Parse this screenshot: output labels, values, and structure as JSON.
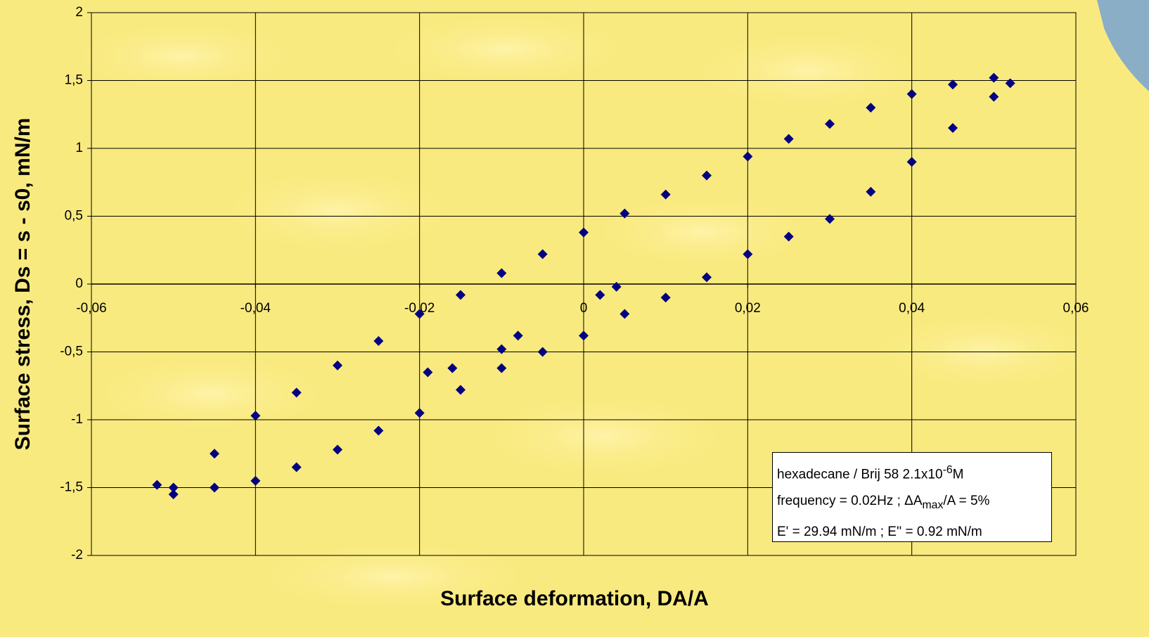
{
  "chart_data": {
    "type": "scatter",
    "x_label": "Surface deformation, DA/A",
    "y_label": "Surface stress, Ds = s - s0, mN/m",
    "color": "#000080",
    "grid": true,
    "xlim": [
      -0.06,
      0.06
    ],
    "ylim": [
      -2,
      2
    ],
    "xticks": [
      {
        "value": -0.06,
        "label": "-0,06"
      },
      {
        "value": -0.04,
        "label": "-0,04"
      },
      {
        "value": -0.02,
        "label": "-0,02"
      },
      0,
      {
        "value": 0.02,
        "label": "0,02"
      },
      {
        "value": 0.04,
        "label": "0,04"
      },
      {
        "value": 0.06,
        "label": "0,06"
      }
    ],
    "yticks": [
      -2,
      {
        "value": -1.5,
        "label": "-1,5"
      },
      -1,
      {
        "value": -0.5,
        "label": "-0,5"
      },
      0,
      {
        "value": 0.5,
        "label": "0,5"
      },
      1,
      {
        "value": 1.5,
        "label": "1,5"
      },
      2
    ],
    "x": [
      -0.05,
      -0.045,
      -0.04,
      -0.035,
      -0.03,
      -0.025,
      -0.02,
      -0.015,
      -0.01,
      -0.005,
      0,
      0.005,
      0.01,
      0.015,
      0.02,
      0.025,
      0.03,
      0.035,
      0.04,
      0.045,
      0.05,
      0.052,
      0.05,
      0.045,
      0.04,
      0.035,
      0.03,
      0.025,
      0.02,
      0.015,
      0.01,
      0.005,
      0,
      -0.005,
      -0.01,
      -0.015,
      -0.02,
      -0.025,
      -0.03,
      -0.035,
      -0.04,
      -0.045,
      -0.05,
      -0.052,
      0.004,
      0.002,
      -0.008,
      -0.01,
      -0.016,
      -0.019
    ],
    "values": [
      -1.5,
      -1.25,
      -0.97,
      -0.8,
      -0.6,
      -0.42,
      -0.22,
      -0.08,
      0.08,
      0.22,
      0.38,
      0.52,
      0.66,
      0.8,
      0.94,
      1.07,
      1.18,
      1.3,
      1.4,
      1.47,
      1.52,
      1.48,
      1.38,
      1.15,
      0.9,
      0.68,
      0.48,
      0.35,
      0.22,
      0.05,
      -0.1,
      -0.22,
      -0.38,
      -0.5,
      -0.62,
      -0.78,
      -0.95,
      -1.08,
      -1.22,
      -1.35,
      -1.45,
      -1.5,
      -1.55,
      -1.48,
      -0.02,
      -0.08,
      -0.38,
      -0.48,
      -0.62,
      -0.65
    ],
    "annotation": [
      [
        "hexadecane / Brij 58 2.1x10",
        "-6",
        "M"
      ],
      [
        "frequency = 0.02Hz ; ΔA",
        "max",
        "/A = 5%"
      ],
      [
        "E' = 29.94 mN/m ; E'' = 0.92 mN/m"
      ]
    ]
  }
}
